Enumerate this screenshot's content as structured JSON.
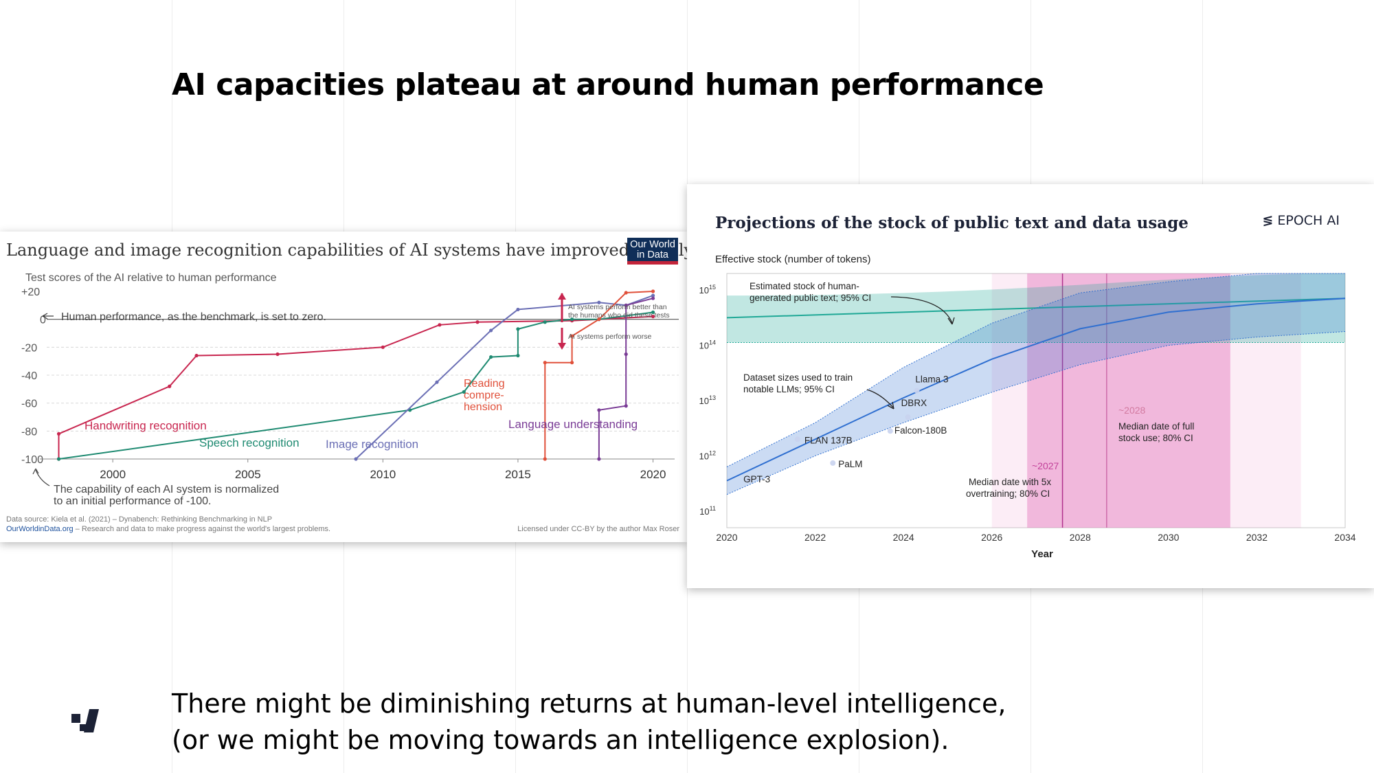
{
  "slide": {
    "title": "AI capacities plateau at around human performance",
    "bottom_line1": "There might be diminishing returns at human-level intelligence,",
    "bottom_line2": "(or we might be moving towards an intelligence explosion)."
  },
  "colors": {
    "handwriting": "#c8264f",
    "speech": "#1e8a71",
    "image": "#6b6fb5",
    "reading": "#e0503a",
    "language": "#7a3c96",
    "epoch_blue": "#2f6fd0",
    "epoch_teal": "#1fa896",
    "epoch_pink": "#e36fb8"
  },
  "left_chart": {
    "title": "Language and image recognition capabilities of AI systems have improved rapidly",
    "logo_line1": "Our World",
    "logo_line2": "in Data",
    "subtitle": "Test scores of the AI relative to human performance",
    "benchmark_note": "Human performance, as the benchmark, is set to zero.",
    "better_note1": "AI systems perform better than",
    "better_note2": "the humans who did these tests",
    "worse_note": "AI systems perform worse",
    "normalized_note1": "The capability of each AI system is normalized",
    "normalized_note2": "to an initial performance of -100.",
    "source_line": "Data source: Kiela et al. (2021) – Dynabench: Rethinking Benchmarking in NLP",
    "site": "OurWorldinData.org",
    "site_tail": " – Research and data to make progress against the world's largest problems.",
    "license": "Licensed under CC-BY by the author Max Roser"
  },
  "right_chart": {
    "title": "Projections of the stock of public text and data usage",
    "brand": "EPOCH AI",
    "brand_mark": "≶",
    "ylabel": "Effective stock (number of tokens)",
    "xlabel": "Year",
    "ann_stock1": "Estimated stock of human-",
    "ann_stock2": "generated public text; 95% CI",
    "ann_dataset1": "Dataset sizes used to train",
    "ann_dataset2": "notable LLMs; 95% CI",
    "median5x_1": "Median date with 5x",
    "median5x_2": "overtraining; 80% CI",
    "median_full1": "Median date of full",
    "median_full2": "stock use; 80% CI",
    "date_5x": "~2027",
    "date_full": "~2028"
  },
  "chart_data": [
    {
      "type": "line",
      "title": "Language and image recognition capabilities of AI systems have improved rapidly",
      "ylabel": "Test scores of the AI relative to human performance",
      "xlim": [
        1997.3,
        2020.8
      ],
      "ylim": [
        -100,
        20
      ],
      "x_ticks": [
        "2000",
        "2005",
        "2010",
        "2015",
        "2020"
      ],
      "y_ticks": [
        "+20",
        "0",
        "-20",
        "-40",
        "-60",
        "-80",
        "-100"
      ],
      "series": [
        {
          "name": "Handwriting recognition",
          "points": [
            [
              1998,
              -100
            ],
            [
              1998,
              -82
            ],
            [
              2002.1,
              -48
            ],
            [
              2003.1,
              -26
            ],
            [
              2006.1,
              -25
            ],
            [
              2010,
              -20
            ],
            [
              2012.1,
              -4
            ],
            [
              2013.5,
              -2
            ],
            [
              2017,
              -1
            ],
            [
              2018,
              0
            ],
            [
              2020,
              2
            ]
          ]
        },
        {
          "name": "Speech recognition",
          "points": [
            [
              1998,
              -100
            ],
            [
              2011,
              -65
            ],
            [
              2013,
              -52
            ],
            [
              2014,
              -27
            ],
            [
              2015,
              -26
            ],
            [
              2015,
              -7
            ],
            [
              2016,
              -2
            ],
            [
              2017,
              0
            ],
            [
              2018,
              0
            ],
            [
              2020,
              5
            ]
          ]
        },
        {
          "name": "Image recognition",
          "points": [
            [
              2009,
              -100
            ],
            [
              2012,
              -45
            ],
            [
              2014,
              -8
            ],
            [
              2015,
              7
            ],
            [
              2018,
              12
            ],
            [
              2019,
              10
            ],
            [
              2020,
              17
            ]
          ]
        },
        {
          "name": "Reading comprehension",
          "points": [
            [
              2016,
              -100
            ],
            [
              2016,
              -31
            ],
            [
              2017,
              -31
            ],
            [
              2017,
              -12
            ],
            [
              2018,
              0
            ],
            [
              2019,
              19
            ],
            [
              2020,
              20
            ]
          ]
        },
        {
          "name": "Language understanding",
          "points": [
            [
              2018,
              -100
            ],
            [
              2018,
              -65
            ],
            [
              2019,
              -62
            ],
            [
              2019,
              -25
            ],
            [
              2019,
              10
            ],
            [
              2020,
              15
            ]
          ]
        }
      ]
    },
    {
      "type": "area",
      "title": "Projections of the stock of public text and data usage",
      "ylabel": "Effective stock (number of tokens)",
      "xlabel": "Year",
      "y_scale": "log",
      "xlim": [
        2020,
        2034
      ],
      "ylim_log10": [
        10.7,
        15.3
      ],
      "x_ticks": [
        "2020",
        "2022",
        "2024",
        "2026",
        "2028",
        "2030",
        "2032",
        "2034"
      ],
      "y_ticks": [
        "10^11",
        "10^12",
        "10^13",
        "10^14",
        "10^15"
      ],
      "series": [
        {
          "name": "Estimated stock of human-generated public text; 95% CI",
          "x": [
            2020,
            2034
          ],
          "log10_median": [
            14.5,
            14.85
          ],
          "log10_low": [
            14.05,
            14.05
          ],
          "log10_high": [
            14.9,
            15.6
          ]
        },
        {
          "name": "Dataset sizes used to train notable LLMs; 95% CI",
          "x": [
            2020,
            2022,
            2024,
            2026,
            2028,
            2030,
            2032,
            2034
          ],
          "log10_median": [
            11.55,
            12.3,
            13.05,
            13.75,
            14.3,
            14.6,
            14.75,
            14.85
          ],
          "log10_low": [
            11.3,
            12.0,
            12.6,
            13.15,
            13.65,
            14.0,
            14.15,
            14.25
          ],
          "log10_high": [
            11.8,
            12.6,
            13.6,
            14.4,
            14.95,
            15.15,
            15.3,
            15.4
          ]
        }
      ],
      "models": [
        {
          "name": "GPT-3",
          "x": 2020.5,
          "log10": 11.57
        },
        {
          "name": "FLAN 137B",
          "x": 2021.6,
          "log10": 12.3
        },
        {
          "name": "PaLM",
          "x": 2022.4,
          "log10": 11.87
        },
        {
          "name": "Falcon-180B",
          "x": 2023.7,
          "log10": 12.45
        },
        {
          "name": "DBRX",
          "x": 2024.1,
          "log10": 12.7
        },
        {
          "name": "Llama 3",
          "x": 2024.3,
          "log10": 13.18
        }
      ],
      "median_5x_overtraining": {
        "date": 2027.6,
        "ci": [
          2026.8,
          2031.4
        ]
      },
      "median_full_stock_use": {
        "date": 2028.6,
        "ci": [
          2026.0,
          2033.0
        ]
      }
    }
  ]
}
